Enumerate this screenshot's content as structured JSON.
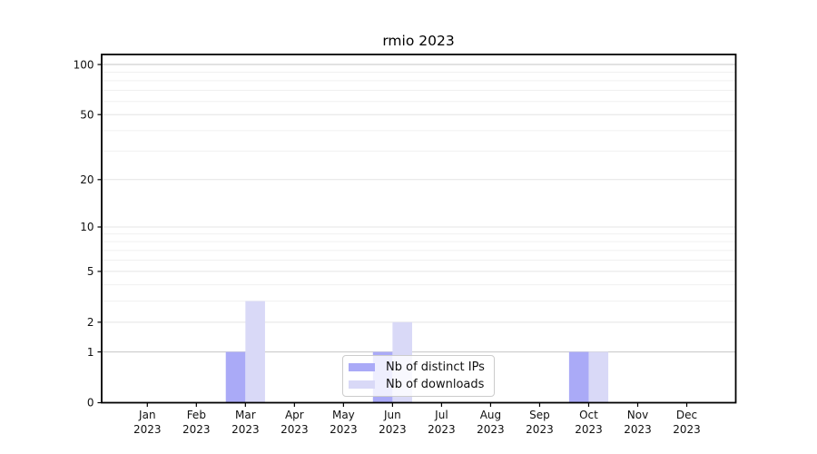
{
  "chart_data": {
    "type": "bar",
    "title": "rmio 2023",
    "categories": [
      "Jan",
      "Feb",
      "Mar",
      "Apr",
      "May",
      "Jun",
      "Jul",
      "Aug",
      "Sep",
      "Oct",
      "Nov",
      "Dec"
    ],
    "category_year_line": "2023",
    "series": [
      {
        "name": "Nb of distinct IPs",
        "color": "#aaaaf7",
        "values": [
          0,
          0,
          1,
          0,
          0,
          1,
          0,
          0,
          0,
          1,
          0,
          0
        ]
      },
      {
        "name": "Nb of downloads",
        "color": "#d9d9f7",
        "values": [
          0,
          0,
          3,
          0,
          0,
          2,
          0,
          0,
          0,
          1,
          0,
          0
        ]
      }
    ],
    "xlabel": "",
    "ylabel": "",
    "y_axis": {
      "scale": "log1p",
      "tick_values": [
        0,
        1,
        2,
        5,
        10,
        20,
        50,
        100
      ],
      "tick_labels": [
        "0",
        "1",
        "2",
        "5",
        "10",
        "20",
        "50",
        "100"
      ],
      "minor_gridlines": [
        3,
        4,
        6,
        7,
        8,
        9,
        30,
        40,
        60,
        70,
        80,
        90
      ],
      "range": [
        0,
        115
      ]
    },
    "legend": {
      "position": "lower center"
    },
    "grid": true,
    "colors": {
      "axis": "#000000",
      "text": "#111111",
      "grid_minor": "#f0f0f0",
      "grid_mid": "#e4e4e4",
      "grid_major": "#c6c6c6"
    }
  }
}
